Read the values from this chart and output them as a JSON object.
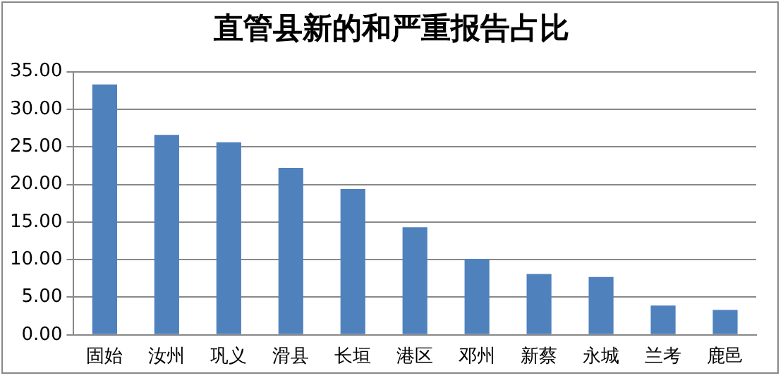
{
  "chart_data": {
    "type": "bar",
    "title": "直管县新的和严重报告占比",
    "categories": [
      "固始",
      "汝州",
      "巩义",
      "滑县",
      "长垣",
      "港区",
      "邓州",
      "新蔡",
      "永城",
      "兰考",
      "鹿邑"
    ],
    "values": [
      33.3,
      26.6,
      25.6,
      22.2,
      19.4,
      14.3,
      10.1,
      8.1,
      7.7,
      3.9,
      3.3
    ],
    "color": "#4f81bd",
    "ylim": [
      0,
      35
    ],
    "yticks": [
      {
        "value": 0,
        "label": "0.00"
      },
      {
        "value": 5,
        "label": "5.00"
      },
      {
        "value": 10,
        "label": "10.00"
      },
      {
        "value": 15,
        "label": "15.00"
      },
      {
        "value": 20,
        "label": "20.00"
      },
      {
        "value": 25,
        "label": "25.00"
      },
      {
        "value": 30,
        "label": "30.00"
      },
      {
        "value": 35,
        "label": "35.00"
      }
    ],
    "grid": "y",
    "legend": false
  }
}
